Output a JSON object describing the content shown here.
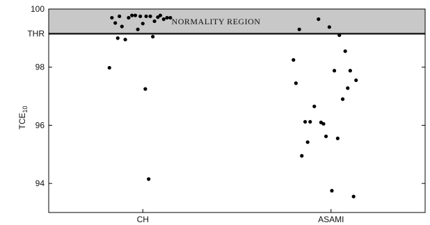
{
  "chart_data": {
    "type": "scatter",
    "ylabel_main": "TCE",
    "ylabel_sub": "10",
    "ylim": [
      93,
      100
    ],
    "yticks": [
      {
        "value": 94,
        "label": "94"
      },
      {
        "value": 96,
        "label": "96"
      },
      {
        "value": 98,
        "label": "98"
      },
      {
        "value": 100,
        "label": "100"
      }
    ],
    "threshold": {
      "value": 99.15,
      "label": "THR"
    },
    "normality_region": {
      "from": 99.15,
      "to": 100,
      "label": "NORMALITY REGION",
      "color": "#c8c8c8"
    },
    "categories": [
      "CH",
      "ASAMI"
    ],
    "grid": false,
    "point_color": "#000000",
    "series": [
      {
        "category": "CH",
        "points": [
          {
            "x": -0.37,
            "y": 99.7
          },
          {
            "x": -0.33,
            "y": 99.52
          },
          {
            "x": -0.3,
            "y": 99.0
          },
          {
            "x": -0.28,
            "y": 99.75
          },
          {
            "x": -0.25,
            "y": 99.4
          },
          {
            "x": -0.21,
            "y": 98.95
          },
          {
            "x": -0.17,
            "y": 99.7
          },
          {
            "x": -0.13,
            "y": 99.78
          },
          {
            "x": -0.09,
            "y": 99.78
          },
          {
            "x": -0.06,
            "y": 99.3
          },
          {
            "x": -0.03,
            "y": 99.75
          },
          {
            "x": 0.0,
            "y": 99.5
          },
          {
            "x": 0.04,
            "y": 99.75
          },
          {
            "x": 0.09,
            "y": 99.75
          },
          {
            "x": 0.12,
            "y": 99.05
          },
          {
            "x": 0.14,
            "y": 99.58
          },
          {
            "x": 0.18,
            "y": 99.72
          },
          {
            "x": 0.21,
            "y": 99.78
          },
          {
            "x": 0.25,
            "y": 99.65
          },
          {
            "x": 0.29,
            "y": 99.7
          },
          {
            "x": 0.33,
            "y": 99.7
          },
          {
            "x": -0.4,
            "y": 97.98
          },
          {
            "x": 0.03,
            "y": 97.25
          },
          {
            "x": 0.07,
            "y": 94.15
          }
        ]
      },
      {
        "category": "ASAMI",
        "points": [
          {
            "x": -0.45,
            "y": 98.25
          },
          {
            "x": -0.42,
            "y": 97.45
          },
          {
            "x": -0.38,
            "y": 99.3
          },
          {
            "x": -0.35,
            "y": 94.95
          },
          {
            "x": -0.31,
            "y": 96.12
          },
          {
            "x": -0.28,
            "y": 95.42
          },
          {
            "x": -0.25,
            "y": 96.12
          },
          {
            "x": -0.2,
            "y": 96.65
          },
          {
            "x": -0.15,
            "y": 99.65
          },
          {
            "x": -0.12,
            "y": 96.1
          },
          {
            "x": -0.09,
            "y": 96.05
          },
          {
            "x": -0.06,
            "y": 95.62
          },
          {
            "x": -0.02,
            "y": 99.38
          },
          {
            "x": 0.01,
            "y": 93.75
          },
          {
            "x": 0.04,
            "y": 97.88
          },
          {
            "x": 0.08,
            "y": 95.55
          },
          {
            "x": 0.1,
            "y": 99.1
          },
          {
            "x": 0.14,
            "y": 96.9
          },
          {
            "x": 0.17,
            "y": 98.55
          },
          {
            "x": 0.2,
            "y": 97.28
          },
          {
            "x": 0.23,
            "y": 97.88
          },
          {
            "x": 0.27,
            "y": 93.55
          },
          {
            "x": 0.3,
            "y": 97.55
          }
        ]
      }
    ]
  }
}
